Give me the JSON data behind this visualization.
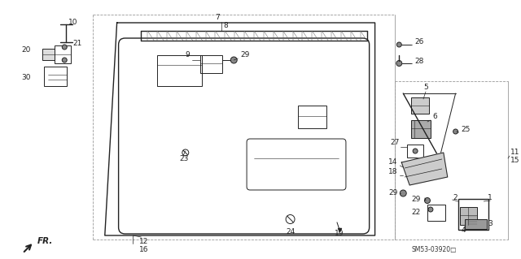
{
  "bg_color": "#ffffff",
  "fig_width": 6.4,
  "fig_height": 3.19,
  "diagram_code": "SM53-03920□",
  "color": "#222222"
}
